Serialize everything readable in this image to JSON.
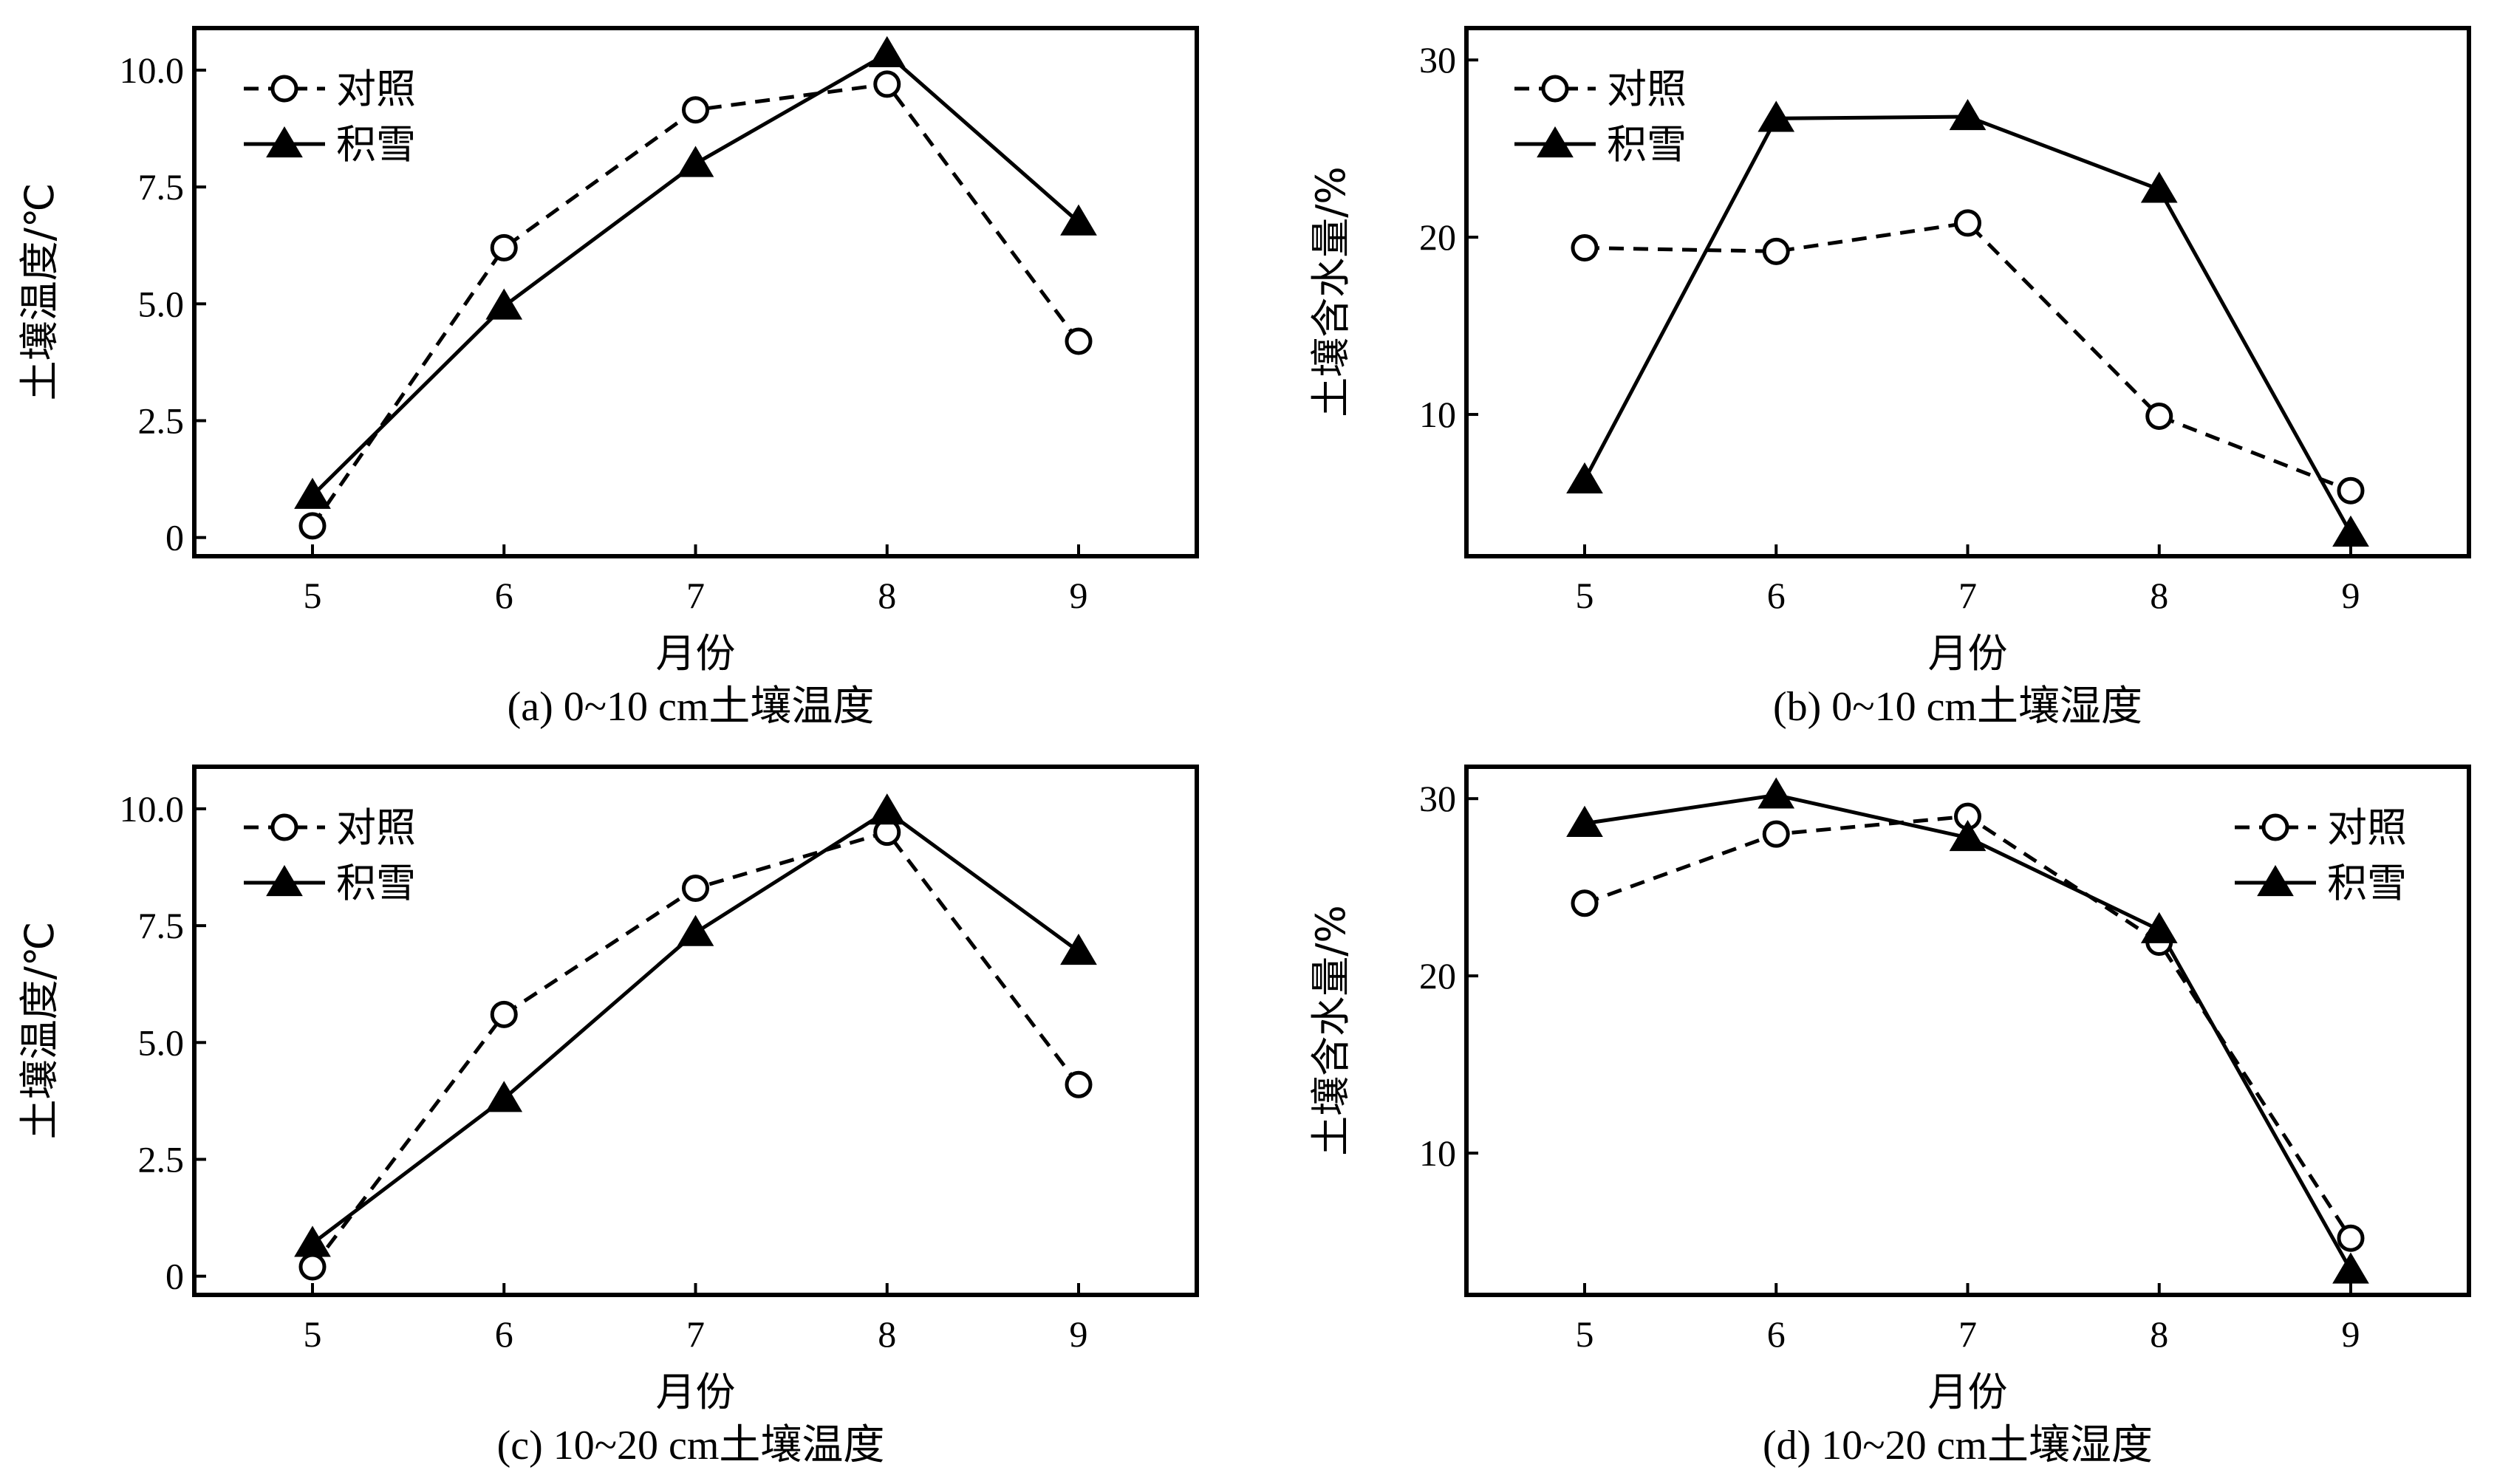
{
  "chart_data": [
    {
      "type": "line",
      "caption": "(a) 0~10 cm土壤温度",
      "xlabel": "月份",
      "ylabel": "土壤温度/℃",
      "categories": [
        "5",
        "6",
        "7",
        "8",
        "9"
      ],
      "ylim": [
        -0.4,
        10.9
      ],
      "yticks": [
        0,
        2.5,
        5.0,
        7.5,
        10.0
      ],
      "ytick_labels": [
        "0",
        "2.5",
        "5.0",
        "7.5",
        "10.0"
      ],
      "legend_position": "top-left",
      "series": [
        {
          "name": "对照",
          "style": "dashed",
          "marker": "circle",
          "values": [
            0.25,
            6.2,
            9.15,
            9.7,
            4.2
          ]
        },
        {
          "name": "积雪",
          "style": "solid",
          "marker": "triangle",
          "values": [
            0.9,
            4.95,
            8.0,
            10.35,
            6.75
          ]
        }
      ]
    },
    {
      "type": "line",
      "caption": "(b) 0~10 cm土壤湿度",
      "xlabel": "月份",
      "ylabel": "土壤含水量/%",
      "categories": [
        "5",
        "6",
        "7",
        "8",
        "9"
      ],
      "ylim": [
        2,
        31.8
      ],
      "yticks": [
        10,
        20,
        30
      ],
      "ytick_labels": [
        "10",
        "20",
        "30"
      ],
      "legend_position": "top-left",
      "series": [
        {
          "name": "对照",
          "style": "dashed",
          "marker": "circle",
          "values": [
            19.4,
            19.2,
            20.8,
            9.9,
            5.7
          ]
        },
        {
          "name": "积雪",
          "style": "solid",
          "marker": "triangle",
          "values": [
            6.3,
            26.7,
            26.8,
            22.7,
            3.3
          ]
        }
      ]
    },
    {
      "type": "line",
      "caption": "(c) 10~20 cm土壤温度",
      "xlabel": "月份",
      "ylabel": "土壤温度/℃",
      "categories": [
        "5",
        "6",
        "7",
        "8",
        "9"
      ],
      "ylim": [
        -0.4,
        10.9
      ],
      "yticks": [
        0,
        2.5,
        5.0,
        7.5,
        10.0
      ],
      "ytick_labels": [
        "0",
        "2.5",
        "5.0",
        "7.5",
        "10.0"
      ],
      "legend_position": "top-left",
      "series": [
        {
          "name": "对照",
          "style": "dashed",
          "marker": "circle",
          "values": [
            0.2,
            5.6,
            8.3,
            9.5,
            4.1
          ]
        },
        {
          "name": "积雪",
          "style": "solid",
          "marker": "triangle",
          "values": [
            0.7,
            3.8,
            7.35,
            9.95,
            6.95
          ]
        }
      ]
    },
    {
      "type": "line",
      "caption": "(d) 10~20 cm土壤湿度",
      "xlabel": "月份",
      "ylabel": "土壤含水量/%",
      "categories": [
        "5",
        "6",
        "7",
        "8",
        "9"
      ],
      "ylim": [
        2,
        31.8
      ],
      "yticks": [
        10,
        20,
        30
      ],
      "ytick_labels": [
        "10",
        "20",
        "30"
      ],
      "legend_position": "top-right",
      "series": [
        {
          "name": "对照",
          "style": "dashed",
          "marker": "circle",
          "values": [
            24.1,
            28.0,
            29.0,
            21.9,
            5.2
          ]
        },
        {
          "name": "积雪",
          "style": "solid",
          "marker": "triangle",
          "values": [
            28.6,
            30.2,
            27.8,
            22.6,
            3.4
          ]
        }
      ]
    }
  ]
}
